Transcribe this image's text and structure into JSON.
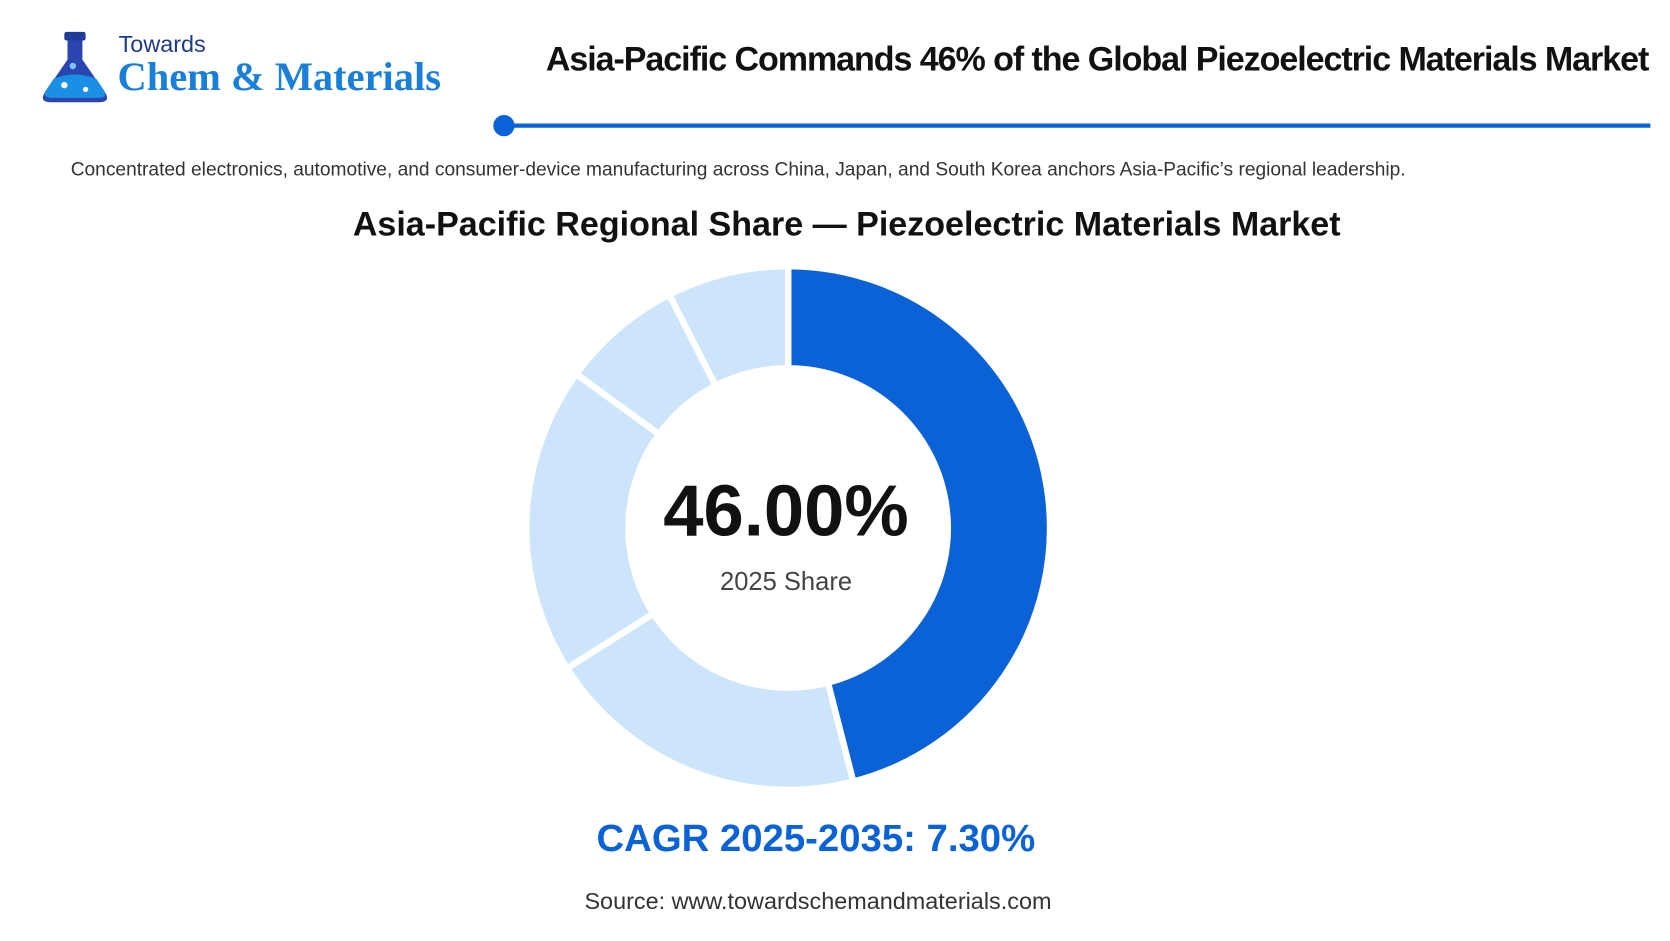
{
  "header": {
    "brand_top": "Towards",
    "brand_name": "Chem & Materials",
    "title": "Asia-Pacific Commands 46% of the Global Piezoelectric Materials Market"
  },
  "subtitle": "Concentrated electronics, automotive, and consumer-device manufacturing across China, Japan, and South Korea anchors Asia-Pacific’s regional leadership.",
  "chart_data": {
    "type": "donut",
    "title": "Asia-Pacific Regional Share — Piezoelectric Materials Market",
    "categories": [
      null,
      null,
      null,
      null,
      null
    ],
    "values": [
      46,
      20,
      19,
      7.5,
      7.5
    ],
    "value_labels": [
      "46.00%",
      null,
      null,
      null,
      null
    ],
    "colors": [
      "#0a62d6",
      "#cce5fb",
      "#cce5fb",
      "#cce5fb",
      "#cce5fb"
    ],
    "center_caption": "2025 Share",
    "cagr": "CAGR 2025-2035: 7.30%"
  },
  "footer": {
    "source": "Source: www.towardschemandmaterials.com"
  }
}
